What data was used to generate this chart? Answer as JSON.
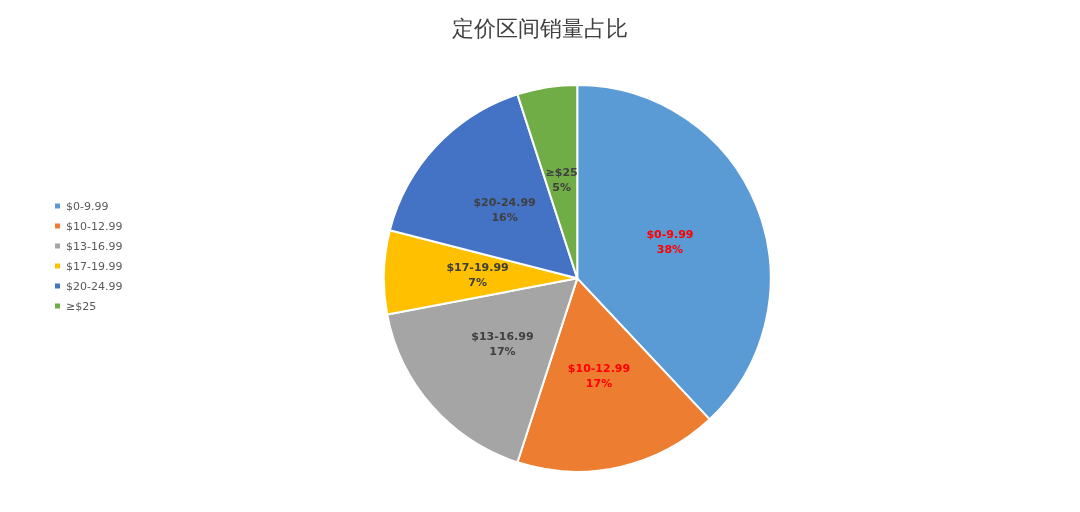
{
  "chart_data": {
    "type": "pie",
    "title": "定价区间销量占比",
    "categories": [
      "$0-9.99",
      "$10-12.99",
      "$13-16.99",
      "$17-19.99",
      "$20-24.99",
      "≥$25"
    ],
    "values": [
      38,
      17,
      17,
      7,
      16,
      5
    ],
    "colors": [
      "#5b9bd5",
      "#ed7d31",
      "#a5a5a5",
      "#ffc000",
      "#4472c4",
      "#70ad47"
    ],
    "data_labels": true,
    "value_labels": [
      "38%",
      "17%",
      "17%",
      "7%",
      "16%",
      "5%"
    ],
    "legend": "left"
  }
}
